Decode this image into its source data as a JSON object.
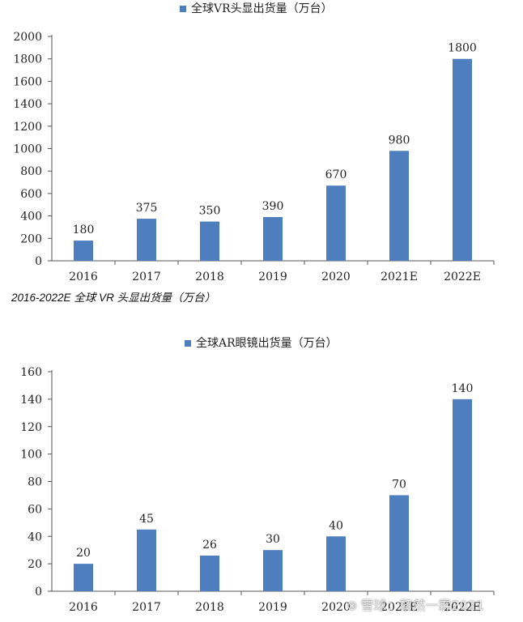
{
  "colors": {
    "bar": "#4f7ebf",
    "axis": "#555555"
  },
  "caption": "2016-2022E 全球 VR 头显出货量（万台）",
  "watermark": {
    "icon": "snowball-logo-icon",
    "text": "雪球：黎然一霖2021"
  },
  "chart_data": [
    {
      "type": "bar",
      "legend": "全球VR头显出货量（万台）",
      "legend_position": "top",
      "categories": [
        "2016",
        "2017",
        "2018",
        "2019",
        "2020",
        "2021E",
        "2022E"
      ],
      "values": [
        180,
        375,
        350,
        390,
        670,
        980,
        1800
      ],
      "value_labels": [
        "180",
        "375",
        "350",
        "390",
        "670",
        "980",
        "1800"
      ],
      "yticks": [
        0,
        200,
        400,
        600,
        800,
        1000,
        1200,
        1400,
        1600,
        1800,
        2000
      ],
      "ylim": [
        0,
        2000
      ],
      "grid": false
    },
    {
      "type": "bar",
      "legend": "全球AR眼镜出货量（万台）",
      "legend_position": "top",
      "categories": [
        "2016",
        "2017",
        "2018",
        "2019",
        "2020",
        "2021E",
        "2022E"
      ],
      "values": [
        20,
        45,
        26,
        30,
        40,
        70,
        140
      ],
      "value_labels": [
        "20",
        "45",
        "26",
        "30",
        "40",
        "70",
        "140"
      ],
      "yticks": [
        0,
        20,
        40,
        60,
        80,
        100,
        120,
        140,
        160
      ],
      "ylim": [
        0,
        160
      ],
      "grid": false
    }
  ]
}
